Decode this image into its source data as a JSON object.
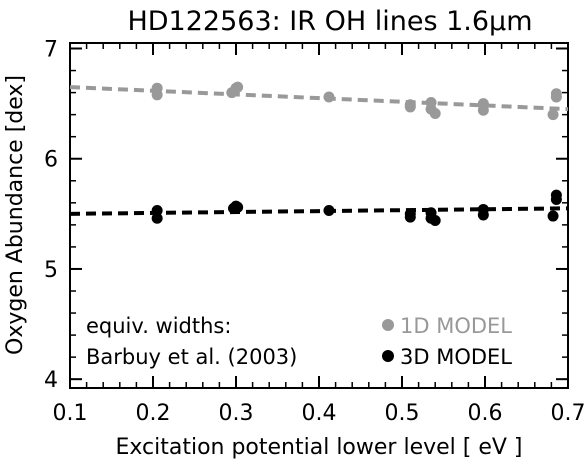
{
  "chart_data": {
    "type": "scatter",
    "title": "HD122563:  IR OH lines 1.6μm",
    "xlabel": "Excitation potential lower level [ eV ]",
    "ylabel": "Oxygen Abundance [dex]",
    "xlim": [
      0.1,
      0.7
    ],
    "ylim": [
      3.92,
      7.05
    ],
    "xticks": [
      "0.1",
      "0.2",
      "0.3",
      "0.4",
      "0.5",
      "0.6",
      "0.7"
    ],
    "yticks": [
      "4",
      "5",
      "6",
      "7"
    ],
    "grid": false,
    "legend_position": "bottom-right",
    "annotation": {
      "line1": "equiv. widths:",
      "line2": "Barbuy et al. (2003)"
    },
    "series": [
      {
        "name": "1D MODEL",
        "color": "#999999",
        "x": [
          0.205,
          0.205,
          0.295,
          0.3,
          0.302,
          0.412,
          0.51,
          0.51,
          0.535,
          0.535,
          0.54,
          0.598,
          0.598,
          0.682,
          0.686,
          0.686
        ],
        "y": [
          6.64,
          6.58,
          6.6,
          6.64,
          6.65,
          6.56,
          6.49,
          6.47,
          6.51,
          6.45,
          6.41,
          6.5,
          6.44,
          6.4,
          6.56,
          6.59
        ],
        "fit": {
          "x": [
            0.1,
            0.7
          ],
          "y": [
            6.65,
            6.45
          ]
        }
      },
      {
        "name": "3D MODEL",
        "color": "#000000",
        "x": [
          0.205,
          0.205,
          0.297,
          0.3,
          0.302,
          0.412,
          0.51,
          0.51,
          0.535,
          0.535,
          0.54,
          0.598,
          0.598,
          0.682,
          0.686,
          0.686
        ],
        "y": [
          5.53,
          5.46,
          5.55,
          5.57,
          5.56,
          5.53,
          5.5,
          5.47,
          5.51,
          5.46,
          5.44,
          5.54,
          5.49,
          5.48,
          5.63,
          5.67
        ],
        "fit": {
          "x": [
            0.1,
            0.7
          ],
          "y": [
            5.5,
            5.55
          ]
        }
      }
    ]
  }
}
